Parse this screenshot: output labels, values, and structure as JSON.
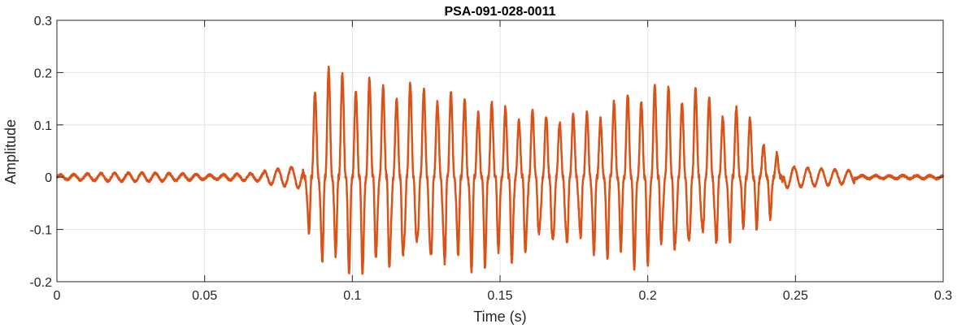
{
  "chart_data": {
    "type": "line",
    "title": "PSA-091-028-0011",
    "xlabel": "Time (s)",
    "ylabel": "Amplitude",
    "xlim": [
      0,
      0.3
    ],
    "ylim": [
      -0.2,
      0.3
    ],
    "xticks": [
      0,
      0.05,
      0.1,
      0.15,
      0.2,
      0.25,
      0.3
    ],
    "xtick_labels": [
      "0",
      "0.05",
      "0.1",
      "0.15",
      "0.2",
      "0.25",
      "0.3"
    ],
    "yticks": [
      -0.2,
      -0.1,
      0,
      0.1,
      0.2,
      0.3
    ],
    "ytick_labels": [
      "-0.2",
      "-0.1",
      "0",
      "0.1",
      "0.2",
      "0.3"
    ],
    "grid": true,
    "line_color": "#D95319",
    "peaks_max": [
      [
        0.087,
        0.2
      ],
      [
        0.09,
        0.18
      ],
      [
        0.092,
        0.21
      ],
      [
        0.095,
        0.2
      ],
      [
        0.097,
        0.21
      ],
      [
        0.1,
        0.2
      ],
      [
        0.104,
        0.19
      ],
      [
        0.108,
        0.185
      ],
      [
        0.112,
        0.18
      ],
      [
        0.116,
        0.18
      ],
      [
        0.121,
        0.18
      ],
      [
        0.126,
        0.175
      ],
      [
        0.131,
        0.17
      ],
      [
        0.136,
        0.16
      ],
      [
        0.141,
        0.15
      ],
      [
        0.146,
        0.145
      ],
      [
        0.151,
        0.14
      ],
      [
        0.156,
        0.13
      ],
      [
        0.161,
        0.13
      ],
      [
        0.166,
        0.12
      ],
      [
        0.171,
        0.13
      ],
      [
        0.176,
        0.12
      ],
      [
        0.181,
        0.13
      ],
      [
        0.186,
        0.14
      ],
      [
        0.191,
        0.155
      ],
      [
        0.196,
        0.17
      ],
      [
        0.201,
        0.18
      ],
      [
        0.206,
        0.18
      ],
      [
        0.211,
        0.17
      ],
      [
        0.214,
        0.18
      ],
      [
        0.219,
        0.165
      ],
      [
        0.224,
        0.14
      ],
      [
        0.229,
        0.14
      ],
      [
        0.234,
        0.12
      ],
      [
        0.238,
        0.08
      ],
      [
        0.242,
        0.06
      ]
    ],
    "peaks_min": [
      [
        0.087,
        -0.14
      ],
      [
        0.091,
        -0.16
      ],
      [
        0.095,
        -0.16
      ],
      [
        0.099,
        -0.16
      ],
      [
        0.103,
        -0.17
      ],
      [
        0.107,
        -0.175
      ],
      [
        0.111,
        -0.17
      ],
      [
        0.115,
        -0.17
      ],
      [
        0.12,
        -0.175
      ],
      [
        0.125,
        -0.17
      ],
      [
        0.13,
        -0.17
      ],
      [
        0.135,
        -0.165
      ],
      [
        0.14,
        -0.16
      ],
      [
        0.145,
        -0.155
      ],
      [
        0.15,
        -0.15
      ],
      [
        0.155,
        -0.15
      ],
      [
        0.16,
        -0.15
      ],
      [
        0.165,
        -0.14
      ],
      [
        0.17,
        -0.14
      ],
      [
        0.175,
        -0.14
      ],
      [
        0.18,
        -0.14
      ],
      [
        0.185,
        -0.14
      ],
      [
        0.19,
        -0.145
      ],
      [
        0.195,
        -0.155
      ],
      [
        0.2,
        -0.16
      ],
      [
        0.205,
        -0.15
      ],
      [
        0.21,
        -0.15
      ],
      [
        0.215,
        -0.145
      ],
      [
        0.22,
        -0.135
      ],
      [
        0.225,
        -0.13
      ],
      [
        0.23,
        -0.11
      ],
      [
        0.236,
        -0.09
      ],
      [
        0.242,
        -0.07
      ]
    ]
  }
}
